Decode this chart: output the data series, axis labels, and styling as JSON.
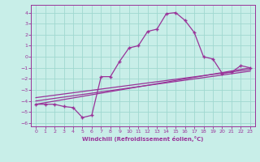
{
  "xlabel": "Windchill (Refroidissement éolien,°C)",
  "background_color": "#c8eee8",
  "grid_color": "#a0d8d0",
  "line_color": "#993399",
  "xlim": [
    -0.5,
    23.5
  ],
  "ylim": [
    -6.3,
    4.7
  ],
  "xticks": [
    0,
    1,
    2,
    3,
    4,
    5,
    6,
    7,
    8,
    9,
    10,
    11,
    12,
    13,
    14,
    15,
    16,
    17,
    18,
    19,
    20,
    21,
    22,
    23
  ],
  "yticks": [
    -6,
    -5,
    -4,
    -3,
    -2,
    -1,
    0,
    1,
    2,
    3,
    4
  ],
  "main_x": [
    0,
    1,
    2,
    3,
    4,
    5,
    6,
    7,
    8,
    9,
    10,
    11,
    12,
    13,
    14,
    15,
    16,
    17,
    18,
    19,
    20,
    21,
    22,
    23
  ],
  "main_y": [
    -4.3,
    -4.3,
    -4.3,
    -4.5,
    -4.6,
    -5.5,
    -5.3,
    -1.8,
    -1.8,
    -0.4,
    0.8,
    1.0,
    2.3,
    2.5,
    3.9,
    4.0,
    3.3,
    2.2,
    0.0,
    -0.2,
    -1.5,
    -1.4,
    -0.8,
    -1.0
  ],
  "line1_x": [
    0,
    23
  ],
  "line1_y": [
    -4.3,
    -1.0
  ],
  "line2_x": [
    0,
    23
  ],
  "line2_y": [
    -4.0,
    -1.3
  ],
  "line3_x": [
    0,
    23
  ],
  "line3_y": [
    -3.7,
    -1.15
  ]
}
